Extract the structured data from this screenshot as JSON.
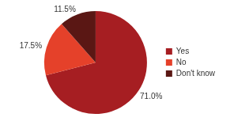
{
  "chart_data": {
    "type": "pie",
    "categories": [
      "Yes",
      "No",
      "Don't know"
    ],
    "values": [
      71.0,
      17.5,
      11.5
    ],
    "value_labels": [
      "71.0%",
      "17.5%",
      "11.5%"
    ],
    "colors": [
      "#a61e22",
      "#e5412a",
      "#5a1714"
    ],
    "legend": "right",
    "data_labels": true
  }
}
